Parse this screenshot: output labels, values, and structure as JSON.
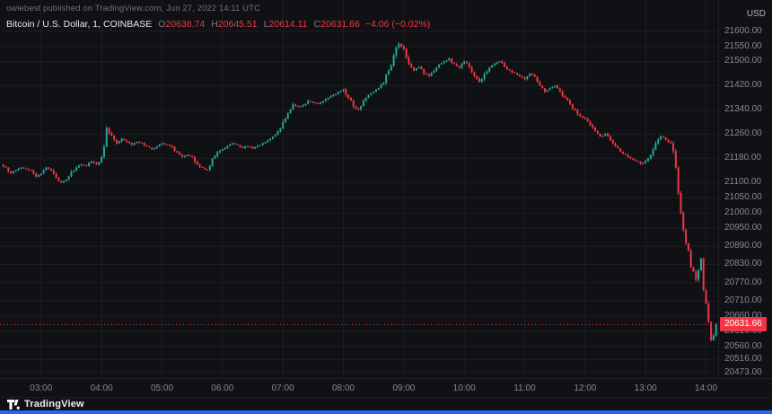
{
  "attribution": "owiebest published on TradingView.com, Jun 27, 2022 14:11 UTC",
  "legend": {
    "symbol": "Bitcoin / U.S. Dollar, 1, COINBASE",
    "o_label": "O",
    "o": "20638.74",
    "h_label": "H",
    "h": "20645.51",
    "l_label": "L",
    "l": "20614.11",
    "c_label": "C",
    "c": "20631.66",
    "change": "−4.06 (−0.02%)"
  },
  "price_axis": {
    "currency": "USD",
    "last_price": "20631.66",
    "ticks": [
      "21600.00",
      "21550.00",
      "21500.00",
      "21420.00",
      "21340.00",
      "21260.00",
      "21180.00",
      "21100.00",
      "21050.00",
      "21000.00",
      "20950.00",
      "20890.00",
      "20830.00",
      "20770.00",
      "20710.00",
      "20660.00",
      "20610.00",
      "20560.00",
      "20516.00",
      "20473.00"
    ]
  },
  "time_axis": {
    "ticks": [
      "03:00",
      "04:00",
      "05:00",
      "06:00",
      "07:00",
      "08:00",
      "09:00",
      "10:00",
      "11:00",
      "12:00",
      "13:00",
      "14:00"
    ]
  },
  "footer": {
    "brand": "TradingView"
  },
  "colors": {
    "background": "#101114",
    "up": "#26a69a",
    "down": "#f23645",
    "last_price_bg": "#f23645",
    "accent_blue": "#2962ff",
    "axis_text": "#868993"
  },
  "chart_data": {
    "type": "candlestick",
    "title": "Bitcoin / U.S. Dollar, 1, COINBASE",
    "unit": "USD",
    "interval_minutes": 5,
    "start_hour": 2.3333,
    "start_time": "02:20",
    "end_time": "14:10",
    "ylim": [
      20455,
      21620
    ],
    "x_hours_range": [
      2.32,
      14.2
    ],
    "grid": true,
    "last_close": 20631.66,
    "closes": [
      21160,
      21150,
      21130,
      21140,
      21150,
      21145,
      21140,
      21120,
      21130,
      21150,
      21140,
      21115,
      21100,
      21110,
      21135,
      21150,
      21160,
      21155,
      21170,
      21160,
      21185,
      21280,
      21255,
      21230,
      21245,
      21235,
      21225,
      21235,
      21230,
      21220,
      21210,
      21220,
      21230,
      21225,
      21218,
      21200,
      21185,
      21192,
      21185,
      21160,
      21150,
      21142,
      21180,
      21200,
      21210,
      21222,
      21230,
      21224,
      21214,
      21220,
      21212,
      21222,
      21230,
      21240,
      21252,
      21270,
      21300,
      21330,
      21358,
      21350,
      21356,
      21370,
      21364,
      21360,
      21370,
      21380,
      21390,
      21400,
      21408,
      21380,
      21352,
      21342,
      21370,
      21390,
      21400,
      21412,
      21430,
      21470,
      21520,
      21558,
      21540,
      21492,
      21470,
      21482,
      21460,
      21452,
      21470,
      21490,
      21500,
      21510,
      21492,
      21480,
      21500,
      21482,
      21452,
      21432,
      21460,
      21480,
      21492,
      21500,
      21482,
      21470,
      21462,
      21452,
      21442,
      21460,
      21450,
      21420,
      21400,
      21412,
      21420,
      21400,
      21380,
      21360,
      21340,
      21320,
      21310,
      21290,
      21270,
      21252,
      21262,
      21240,
      21220,
      21202,
      21192,
      21180,
      21172,
      21162,
      21172,
      21192,
      21230,
      21252,
      21242,
      21230,
      21150,
      21000,
      20900,
      20820,
      20780,
      20850,
      20700,
      20580,
      20631.66
    ]
  }
}
